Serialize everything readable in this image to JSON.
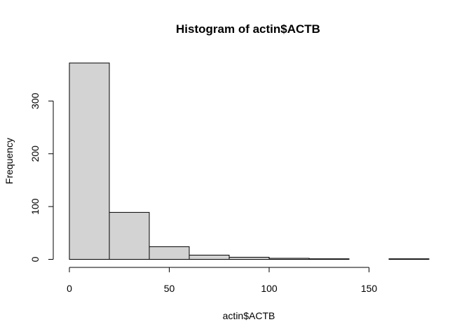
{
  "chart_data": {
    "type": "bar",
    "title": "Histogram of actin$ACTB",
    "xlabel": "actin$ACTB",
    "ylabel": "Frequency",
    "bin_edges": [
      0,
      20,
      40,
      60,
      80,
      100,
      120,
      140,
      160,
      180
    ],
    "values": [
      372,
      89,
      24,
      8,
      4,
      2,
      1,
      0,
      1
    ],
    "xlim": [
      0,
      180
    ],
    "ylim": [
      0,
      372
    ],
    "x_ticks": [
      0,
      50,
      100,
      150
    ],
    "y_ticks": [
      0,
      100,
      200,
      300
    ],
    "bar_color": "#d3d3d3",
    "grid": false
  }
}
